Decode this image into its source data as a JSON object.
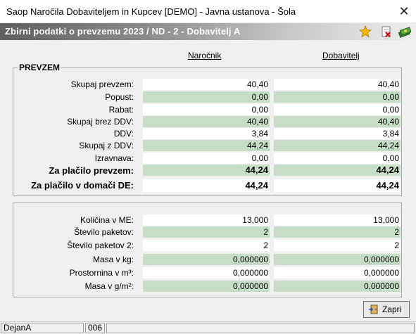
{
  "window": {
    "title": "Saop   Naročila Dobaviteljem in Kupcev [DEMO] - Javna ustanova - Šola",
    "close_glyph": "✕"
  },
  "header": {
    "title": "Zbirni podatki o prevzemu  2023 / ND - 2 - Dobavitelj A",
    "icons": [
      "star-icon",
      "delete-document-icon",
      "money-icon"
    ]
  },
  "columns": {
    "narocnik": "Naročnik",
    "dobavitelj": "Dobavitelj"
  },
  "prevzem": {
    "title": "PREVZEM",
    "rows": [
      {
        "label": "Skupaj prevzem:",
        "narocnik": "40,40",
        "dobavitelj": "40,40"
      },
      {
        "label": "Popust:",
        "narocnik": "0,00",
        "dobavitelj": "0,00"
      },
      {
        "label": "Rabat:",
        "narocnik": "0,00",
        "dobavitelj": "0,00"
      },
      {
        "label": "Skupaj brez DDV:",
        "narocnik": "40,40",
        "dobavitelj": "40,40"
      },
      {
        "label": "DDV:",
        "narocnik": "3,84",
        "dobavitelj": "3,84"
      },
      {
        "label": "Skupaj z DDV:",
        "narocnik": "44,24",
        "dobavitelj": "44,24"
      },
      {
        "label": "Izravnava:",
        "narocnik": "0,00",
        "dobavitelj": "0,00"
      },
      {
        "label": "Za plačilo prevzem:",
        "narocnik": "44,24",
        "dobavitelj": "44,24"
      },
      {
        "label": "Za plačilo v domači DE:",
        "narocnik": "44,24",
        "dobavitelj": "44,24"
      }
    ]
  },
  "quantities": {
    "rows": [
      {
        "label": "Količina v ME:",
        "narocnik": "13,000",
        "dobavitelj": "13,000"
      },
      {
        "label": "Število paketov:",
        "narocnik": "2",
        "dobavitelj": "2"
      },
      {
        "label": "Število paketov 2:",
        "narocnik": "2",
        "dobavitelj": "2"
      },
      {
        "label": "Masa v kg:",
        "narocnik": "0,000000",
        "dobavitelj": "0,000000"
      },
      {
        "label": "Prostornina v m³:",
        "narocnik": "0,000000",
        "dobavitelj": "0,000000"
      },
      {
        "label": "Masa v g/m²:",
        "narocnik": "0,000000",
        "dobavitelj": "0,000000"
      }
    ]
  },
  "buttons": {
    "close_label": "Zapri"
  },
  "statusbar": {
    "user": "DejanA",
    "code": "006"
  },
  "colors": {
    "green_cell": "#c6dec6",
    "white_cell": "#ffffff"
  }
}
